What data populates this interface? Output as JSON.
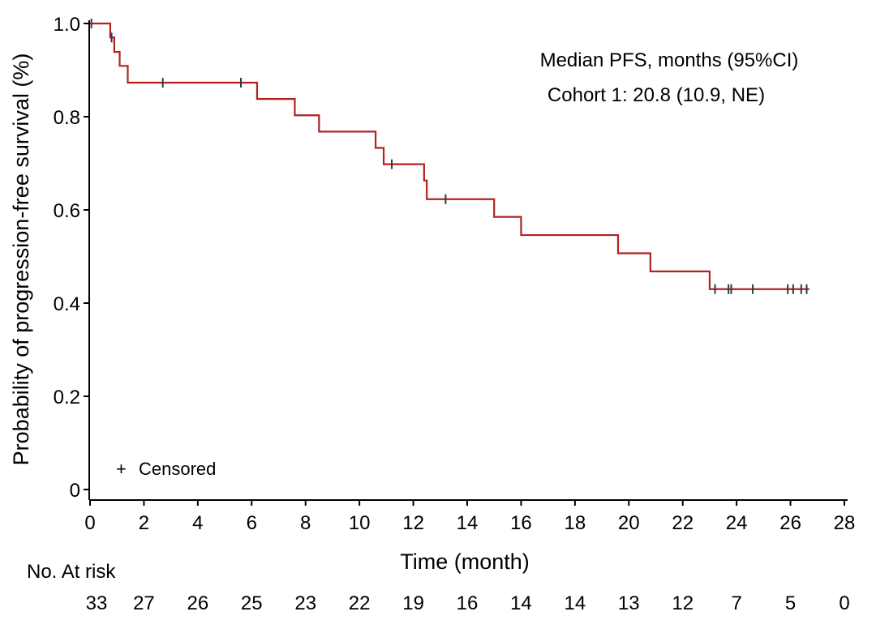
{
  "chart_data": {
    "type": "line",
    "title": "",
    "xlabel": "Time (month)",
    "ylabel": "Probability of progression-free survival (%)",
    "xlim": [
      0,
      28
    ],
    "ylim": [
      0,
      1.0
    ],
    "x_ticks": [
      0,
      2,
      4,
      6,
      8,
      10,
      12,
      14,
      16,
      18,
      20,
      22,
      24,
      26,
      28
    ],
    "x_tick_labels": [
      "0",
      "2",
      "4",
      "6",
      "8",
      "10",
      "12",
      "14",
      "16",
      "18",
      "20",
      "22",
      "24",
      "26",
      "28"
    ],
    "y_ticks": [
      0,
      0.2,
      0.4,
      0.6,
      0.8,
      1.0
    ],
    "y_tick_labels": [
      "0",
      "0.2",
      "0.4",
      "0.6",
      "0.8",
      "1.0"
    ],
    "grid": false,
    "annotations": [
      "Median PFS, months (95%CI)",
      "Cohort 1: 20.8 (10.9, NE)"
    ],
    "legend": {
      "symbol": "+",
      "text": "Censored",
      "placement": "bottom-left"
    },
    "series": [
      {
        "color": "#b22222",
        "step_points": [
          [
            0,
            1.0
          ],
          [
            0.75,
            0.97
          ],
          [
            0.9,
            0.939
          ],
          [
            1.1,
            0.909
          ],
          [
            1.4,
            0.873
          ],
          [
            6.2,
            0.838
          ],
          [
            7.6,
            0.803
          ],
          [
            8.5,
            0.768
          ],
          [
            10.6,
            0.733
          ],
          [
            10.9,
            0.698
          ],
          [
            12.4,
            0.663
          ],
          [
            12.5,
            0.623
          ],
          [
            15.0,
            0.585
          ],
          [
            16.0,
            0.546
          ],
          [
            19.6,
            0.507
          ],
          [
            20.8,
            0.468
          ],
          [
            23.0,
            0.43
          ],
          [
            26.7,
            0.43
          ]
        ],
        "censored": [
          [
            0.05,
            1.0
          ],
          [
            0.8,
            0.97
          ],
          [
            2.7,
            0.873
          ],
          [
            5.6,
            0.873
          ],
          [
            11.2,
            0.698
          ],
          [
            13.2,
            0.623
          ],
          [
            23.2,
            0.43
          ],
          [
            23.7,
            0.43
          ],
          [
            23.8,
            0.43
          ],
          [
            24.6,
            0.43
          ],
          [
            25.9,
            0.43
          ],
          [
            26.1,
            0.43
          ],
          [
            26.4,
            0.43
          ],
          [
            26.6,
            0.43
          ]
        ],
        "censor_color": "#2f3b46"
      }
    ],
    "risk_table": {
      "title": "No. At risk",
      "times": [
        0,
        2,
        4,
        6,
        8,
        10,
        12,
        14,
        16,
        18,
        20,
        22,
        24,
        26,
        28
      ],
      "counts": [
        "33",
        "27",
        "26",
        "25",
        "23",
        "22",
        "19",
        "16",
        "14",
        "14",
        "13",
        "12",
        "7",
        "5",
        "0"
      ]
    }
  }
}
